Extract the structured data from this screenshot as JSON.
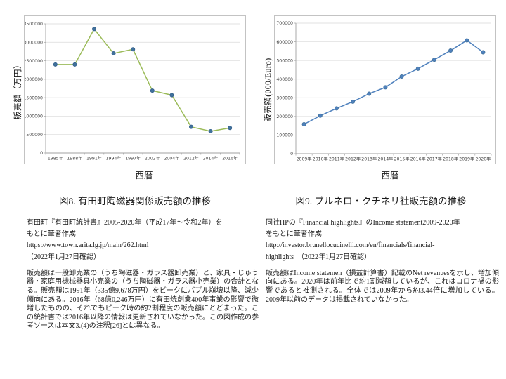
{
  "figures": [
    {
      "caption": "図8. 有田町陶磁器関係販売額の推移",
      "source": "有田町『有田町統計書』2005-2020年（平成17年～令和2年）を\nもとに筆者作成\nhttps://www.town.arita.lg.jp/main/262.html\n（2022年1月27日確認）",
      "description": "販売額は一般卸売業の（うち陶磁器・ガラス器卸売業）と、家具・じゅう器・家庭用機械器具小売業の（うち陶磁器・ガラス器小売業）の合計となる。販売額は1991年（335億9,678万円）をピークにバブル崩壊以降、減少傾向にある。2016年（68億0,246万円）に有田焼創業400年事業の影響で微増したものの、それでもピーク時の約2割程度の販売額にとどまった。この統計書では2016年以降の情報は更新されていなかった。この図作成の参考ソースは本文3.(4)の注釈[26]とは異なる。"
    },
    {
      "caption": "図9. ブルネロ・クチネリ社販売額の推移",
      "source": "同社HPの『Financial highlights』のIncome statement2009-2020年\nをもとに筆者作成\nhttp://investor.brunellocucinelli.com/en/financials/financial-\nhighlights　（2022年1月27日確認）",
      "description": "販売額はIncome statemen（損益計算書）記載のNet revenuesを示し、増加傾向にある。2020年は前年比で約1割減額しているが、これはコロナ禍の影響であると推測される。全体では2009年から約3.44倍に増加している。 2009年以前のデータは掲載されていなかった。"
    }
  ],
  "chart_data": [
    {
      "type": "line",
      "title": "図8. 有田町陶磁器関係販売額の推移",
      "xlabel": "西暦",
      "ylabel": "販売額（万円）",
      "categories": [
        "1985年",
        "1988年",
        "1991年",
        "1994年",
        "1997年",
        "2002年",
        "2004年",
        "2012年",
        "2014年",
        "2016年"
      ],
      "values": [
        2400000,
        2400000,
        3359678,
        2700000,
        2810000,
        1690000,
        1570000,
        710000,
        590000,
        680246
      ],
      "ylim": [
        0,
        3500000
      ],
      "y_step": 500000,
      "grid": true,
      "legend": "none",
      "line_color": "#9BBB59",
      "marker_color": "#41719C",
      "marker_stroke": "#35618C"
    },
    {
      "type": "line",
      "title": "図9. ブルネロ・クチネリ社販売額の推移",
      "xlabel": "西暦",
      "ylabel": "販売額(000/Euro)",
      "categories": [
        "2009年",
        "2010年",
        "2011年",
        "2012年",
        "2013年",
        "2014年",
        "2015年",
        "2016年",
        "2017年",
        "2018年",
        "2019年",
        "2020年"
      ],
      "values": [
        158000,
        204000,
        243000,
        279000,
        322000,
        356000,
        414000,
        456000,
        504000,
        553000,
        608000,
        544000
      ],
      "ylim": [
        0,
        700000
      ],
      "y_step": 100000,
      "grid": true,
      "legend": "none",
      "line_color": "#4F81BD",
      "marker_color": "#4F81BD",
      "marker_stroke": "#41719C"
    }
  ],
  "colors": {
    "gridline": "#d9d9d9",
    "axis": "#a0a0a0",
    "chart_border": "#c3c3c3"
  }
}
